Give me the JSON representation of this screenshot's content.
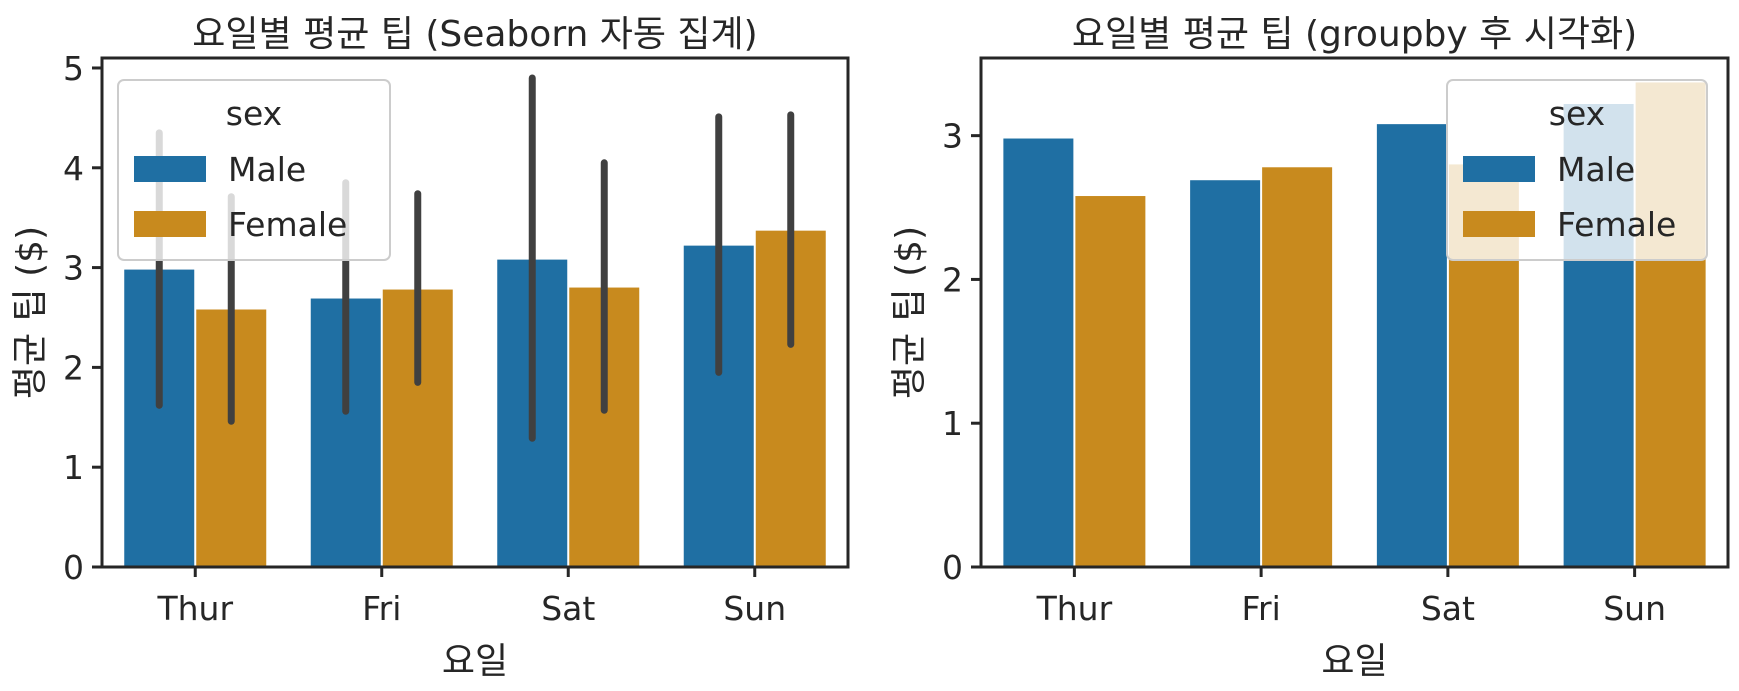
{
  "chart_data": [
    {
      "type": "bar",
      "title": "요일별 평균 팁 (Seaborn 자동 집계)",
      "xlabel": "요일",
      "ylabel": "평균 팁 ($)",
      "categories": [
        "Thur",
        "Fri",
        "Sat",
        "Sun"
      ],
      "ylim": [
        0,
        5.1
      ],
      "yticks": [
        0,
        1,
        2,
        3,
        4,
        5
      ],
      "grid": false,
      "error_bars": true,
      "legend": {
        "title": "sex",
        "placement": "upper-left"
      },
      "series": [
        {
          "name": "Male",
          "color": "#1f6fa3",
          "values": [
            2.98,
            2.69,
            3.08,
            3.22
          ],
          "ci_low": [
            1.62,
            1.56,
            1.29,
            1.95
          ],
          "ci_high": [
            4.35,
            3.85,
            4.9,
            4.51
          ]
        },
        {
          "name": "Female",
          "color": "#c88a1e",
          "values": [
            2.58,
            2.78,
            2.8,
            3.37
          ],
          "ci_low": [
            1.46,
            1.85,
            1.57,
            2.23
          ],
          "ci_high": [
            3.71,
            3.74,
            4.05,
            4.53
          ]
        }
      ]
    },
    {
      "type": "bar",
      "title": "요일별 평균 팁 (groupby 후 시각화)",
      "xlabel": "요일",
      "ylabel": "평균 팁 ($)",
      "categories": [
        "Thur",
        "Fri",
        "Sat",
        "Sun"
      ],
      "ylim": [
        0,
        3.54
      ],
      "yticks": [
        0,
        1,
        2,
        3
      ],
      "grid": false,
      "error_bars": false,
      "legend": {
        "title": "sex",
        "placement": "upper-right"
      },
      "series": [
        {
          "name": "Male",
          "color": "#1f6fa3",
          "values": [
            2.98,
            2.69,
            3.08,
            3.22
          ]
        },
        {
          "name": "Female",
          "color": "#c88a1e",
          "values": [
            2.58,
            2.78,
            2.8,
            3.37
          ]
        }
      ]
    }
  ]
}
